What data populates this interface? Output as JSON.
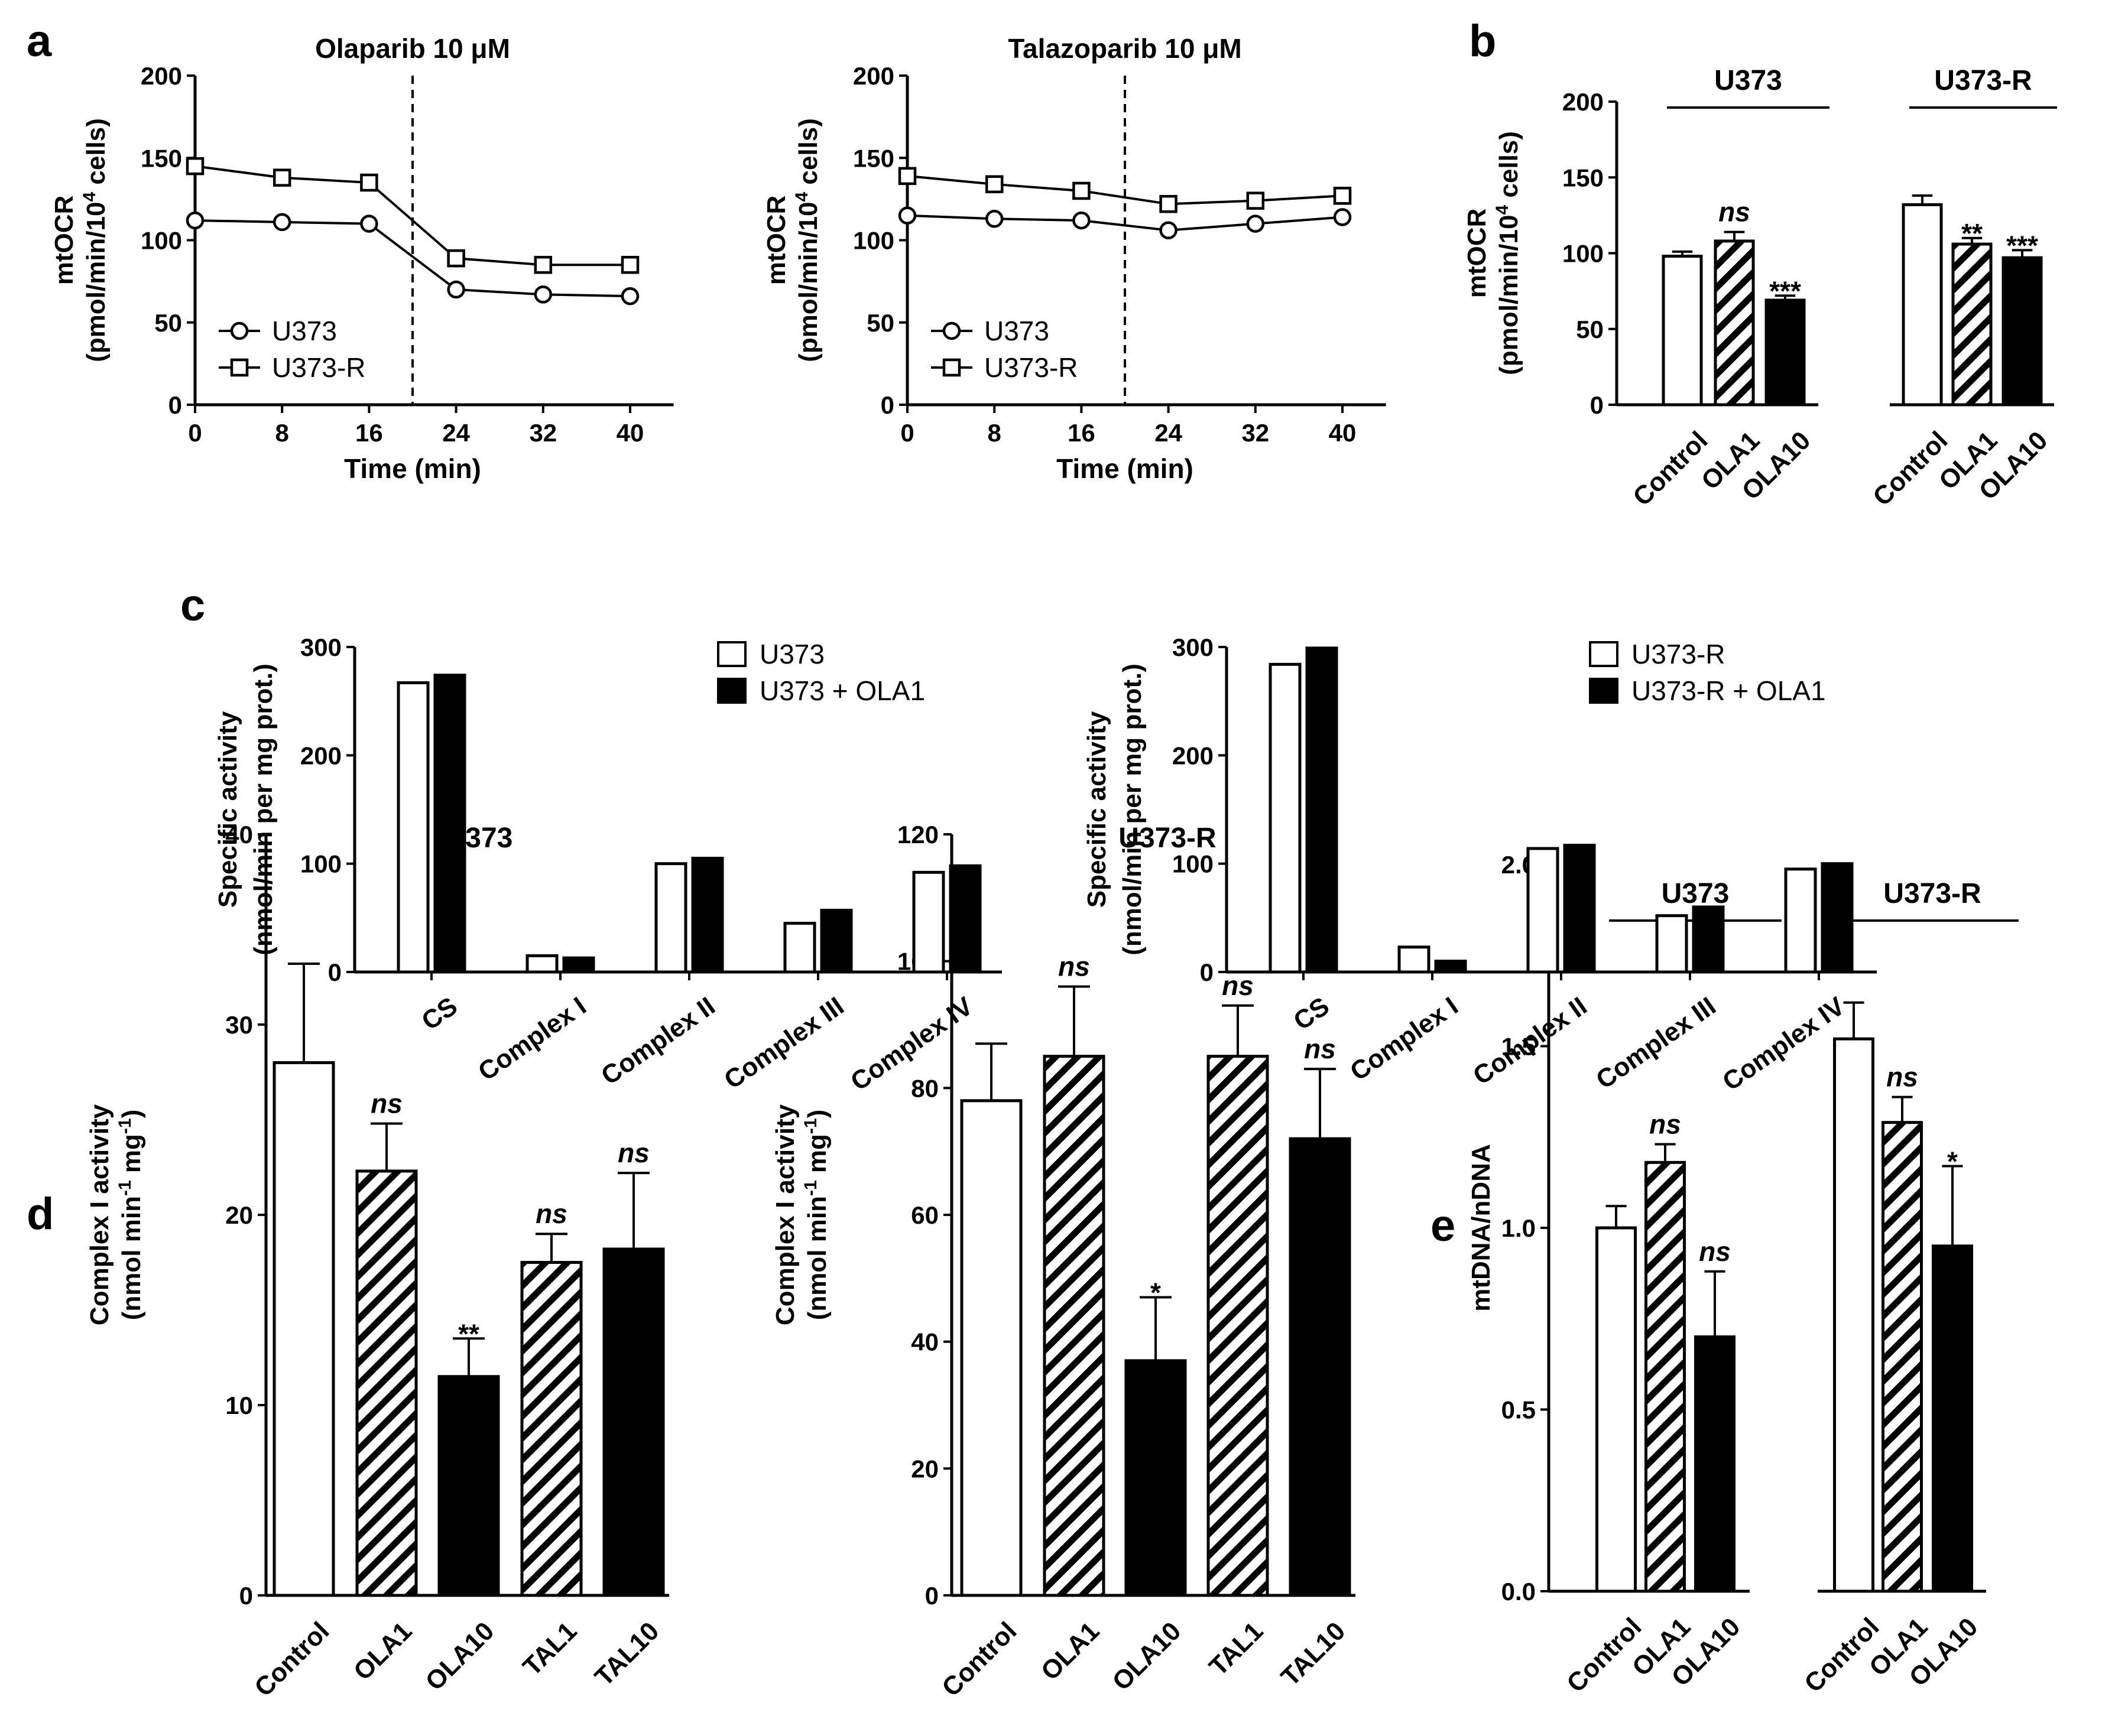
{
  "panels": {
    "a": "a",
    "b": "b",
    "c": "c",
    "d": "d",
    "e": "e"
  },
  "chart_data": [
    {
      "type": "line",
      "panel": "a",
      "title": "Olaparib 10 μM",
      "xlabel": "Time (min)",
      "ylabel": [
        "mtOCR",
        "(pmol/min/10^4 cells)"
      ],
      "x": [
        0,
        8,
        16,
        24,
        32,
        40
      ],
      "xticks": [
        "0",
        "8",
        "16",
        "24",
        "32",
        "40"
      ],
      "yticks": [
        "0",
        "50",
        "100",
        "150",
        "200"
      ],
      "ylim": [
        0,
        200
      ],
      "xlim": [
        0,
        44
      ],
      "vline_x": 20,
      "series": [
        {
          "name": "U373",
          "marker": "circle",
          "values": [
            112,
            111,
            110,
            70,
            67,
            66
          ]
        },
        {
          "name": "U373-R",
          "marker": "square",
          "values": [
            145,
            138,
            135,
            89,
            85,
            85
          ]
        }
      ]
    },
    {
      "type": "line",
      "panel": "a",
      "title": "Talazoparib 10 μM",
      "xlabel": "Time (min)",
      "ylabel": [
        "mtOCR",
        "(pmol/min/10^4 cells)"
      ],
      "x": [
        0,
        8,
        16,
        24,
        32,
        40
      ],
      "xticks": [
        "0",
        "8",
        "16",
        "24",
        "32",
        "40"
      ],
      "yticks": [
        "0",
        "50",
        "100",
        "150",
        "200"
      ],
      "ylim": [
        0,
        200
      ],
      "xlim": [
        0,
        44
      ],
      "vline_x": 20,
      "series": [
        {
          "name": "U373",
          "marker": "circle",
          "values": [
            115,
            113,
            112,
            106,
            110,
            114
          ]
        },
        {
          "name": "U373-R",
          "marker": "square",
          "values": [
            139,
            134,
            130,
            122,
            124,
            127
          ]
        }
      ]
    },
    {
      "type": "bar",
      "panel": "b",
      "ylabel": [
        "mtOCR",
        "(pmol/min/10^4 cells)"
      ],
      "yticks": [
        "0",
        "50",
        "100",
        "150",
        "200"
      ],
      "ylim": [
        0,
        200
      ],
      "groups": [
        "U373",
        "U373-R"
      ],
      "categories": [
        "Control",
        "OLA1",
        "OLA10",
        "Control",
        "OLA1",
        "OLA10"
      ],
      "fills": [
        "white",
        "hatch",
        "black",
        "white",
        "hatch",
        "black"
      ],
      "values": [
        98,
        108,
        69,
        132,
        106,
        97
      ],
      "errors": [
        3,
        6,
        3,
        6,
        4,
        5
      ],
      "annotations": [
        "",
        "ns",
        "***",
        "",
        "**",
        "***"
      ]
    },
    {
      "type": "bar",
      "panel": "c",
      "ylabel": [
        "Specific activity",
        "(nmol/min per mg prot.)"
      ],
      "yticks": [
        "0",
        "100",
        "200",
        "300"
      ],
      "ylim": [
        0,
        300
      ],
      "categories": [
        "CS",
        "Complex I",
        "Complex II",
        "Complex III",
        "Complex IV"
      ],
      "series": [
        {
          "name": "U373",
          "fill": "white",
          "values": [
            267,
            15,
            100,
            45,
            92
          ]
        },
        {
          "name": "U373 + OLA1",
          "fill": "black",
          "values": [
            274,
            13,
            105,
            57,
            98
          ]
        }
      ]
    },
    {
      "type": "bar",
      "panel": "c",
      "ylabel": [
        "Specific activity",
        "(nmol/min per mg prot.)"
      ],
      "yticks": [
        "0",
        "100",
        "200",
        "300"
      ],
      "ylim": [
        0,
        300
      ],
      "categories": [
        "CS",
        "Complex I",
        "Complex II",
        "Complex III",
        "Complex IV"
      ],
      "series": [
        {
          "name": "U373-R",
          "fill": "white",
          "values": [
            284,
            23,
            114,
            52,
            95
          ]
        },
        {
          "name": "U373-R + OLA1",
          "fill": "black",
          "values": [
            299,
            10,
            117,
            60,
            100
          ]
        }
      ]
    },
    {
      "type": "bar",
      "panel": "d",
      "title": "U373",
      "ylabel": [
        "Complex I activity",
        "(nmol min^-1 mg^-1)"
      ],
      "yticks": [
        "0",
        "10",
        "20",
        "30",
        "40"
      ],
      "ylim": [
        0,
        40
      ],
      "categories": [
        "Control",
        "OLA1",
        "OLA10",
        "TAL1",
        "TAL10"
      ],
      "fills": [
        "white",
        "hatch",
        "black",
        "hatch",
        "black"
      ],
      "values": [
        28,
        22.3,
        11.5,
        17.5,
        18.2
      ],
      "errors": [
        5.2,
        2.5,
        2,
        1.5,
        4
      ],
      "annotations": [
        "",
        "ns",
        "**",
        "ns",
        "ns"
      ]
    },
    {
      "type": "bar",
      "panel": "d",
      "title": "U373-R",
      "ylabel": [
        "Complex I activity",
        "(nmol min^-1 mg^-1)"
      ],
      "yticks": [
        "0",
        "20",
        "40",
        "60",
        "80",
        "100",
        "120"
      ],
      "ylim": [
        0,
        120
      ],
      "categories": [
        "Control",
        "OLA1",
        "OLA10",
        "TAL1",
        "TAL10"
      ],
      "fills": [
        "white",
        "hatch",
        "black",
        "hatch",
        "black"
      ],
      "values": [
        78,
        85,
        37,
        85,
        72
      ],
      "errors": [
        9,
        11,
        10,
        8,
        11
      ],
      "annotations": [
        "",
        "ns",
        "*",
        "ns",
        "ns"
      ]
    },
    {
      "type": "bar",
      "panel": "e",
      "ylabel": [
        "mtDNA/nDNA"
      ],
      "yticks": [
        "0.0",
        "0.5",
        "1.0",
        "1.5",
        "2.0"
      ],
      "ylim": [
        0,
        2
      ],
      "groups": [
        "U373",
        "U373-R"
      ],
      "categories": [
        "Control",
        "OLA1",
        "OLA10",
        "Control",
        "OLA1",
        "OLA10"
      ],
      "fills": [
        "white",
        "hatch",
        "black",
        "white",
        "hatch",
        "black"
      ],
      "values": [
        1.0,
        1.18,
        0.7,
        1.52,
        1.29,
        0.95
      ],
      "errors": [
        0.06,
        0.05,
        0.18,
        0.1,
        0.07,
        0.22
      ],
      "annotations": [
        "",
        "ns",
        "ns",
        "",
        "ns",
        "*"
      ]
    }
  ]
}
